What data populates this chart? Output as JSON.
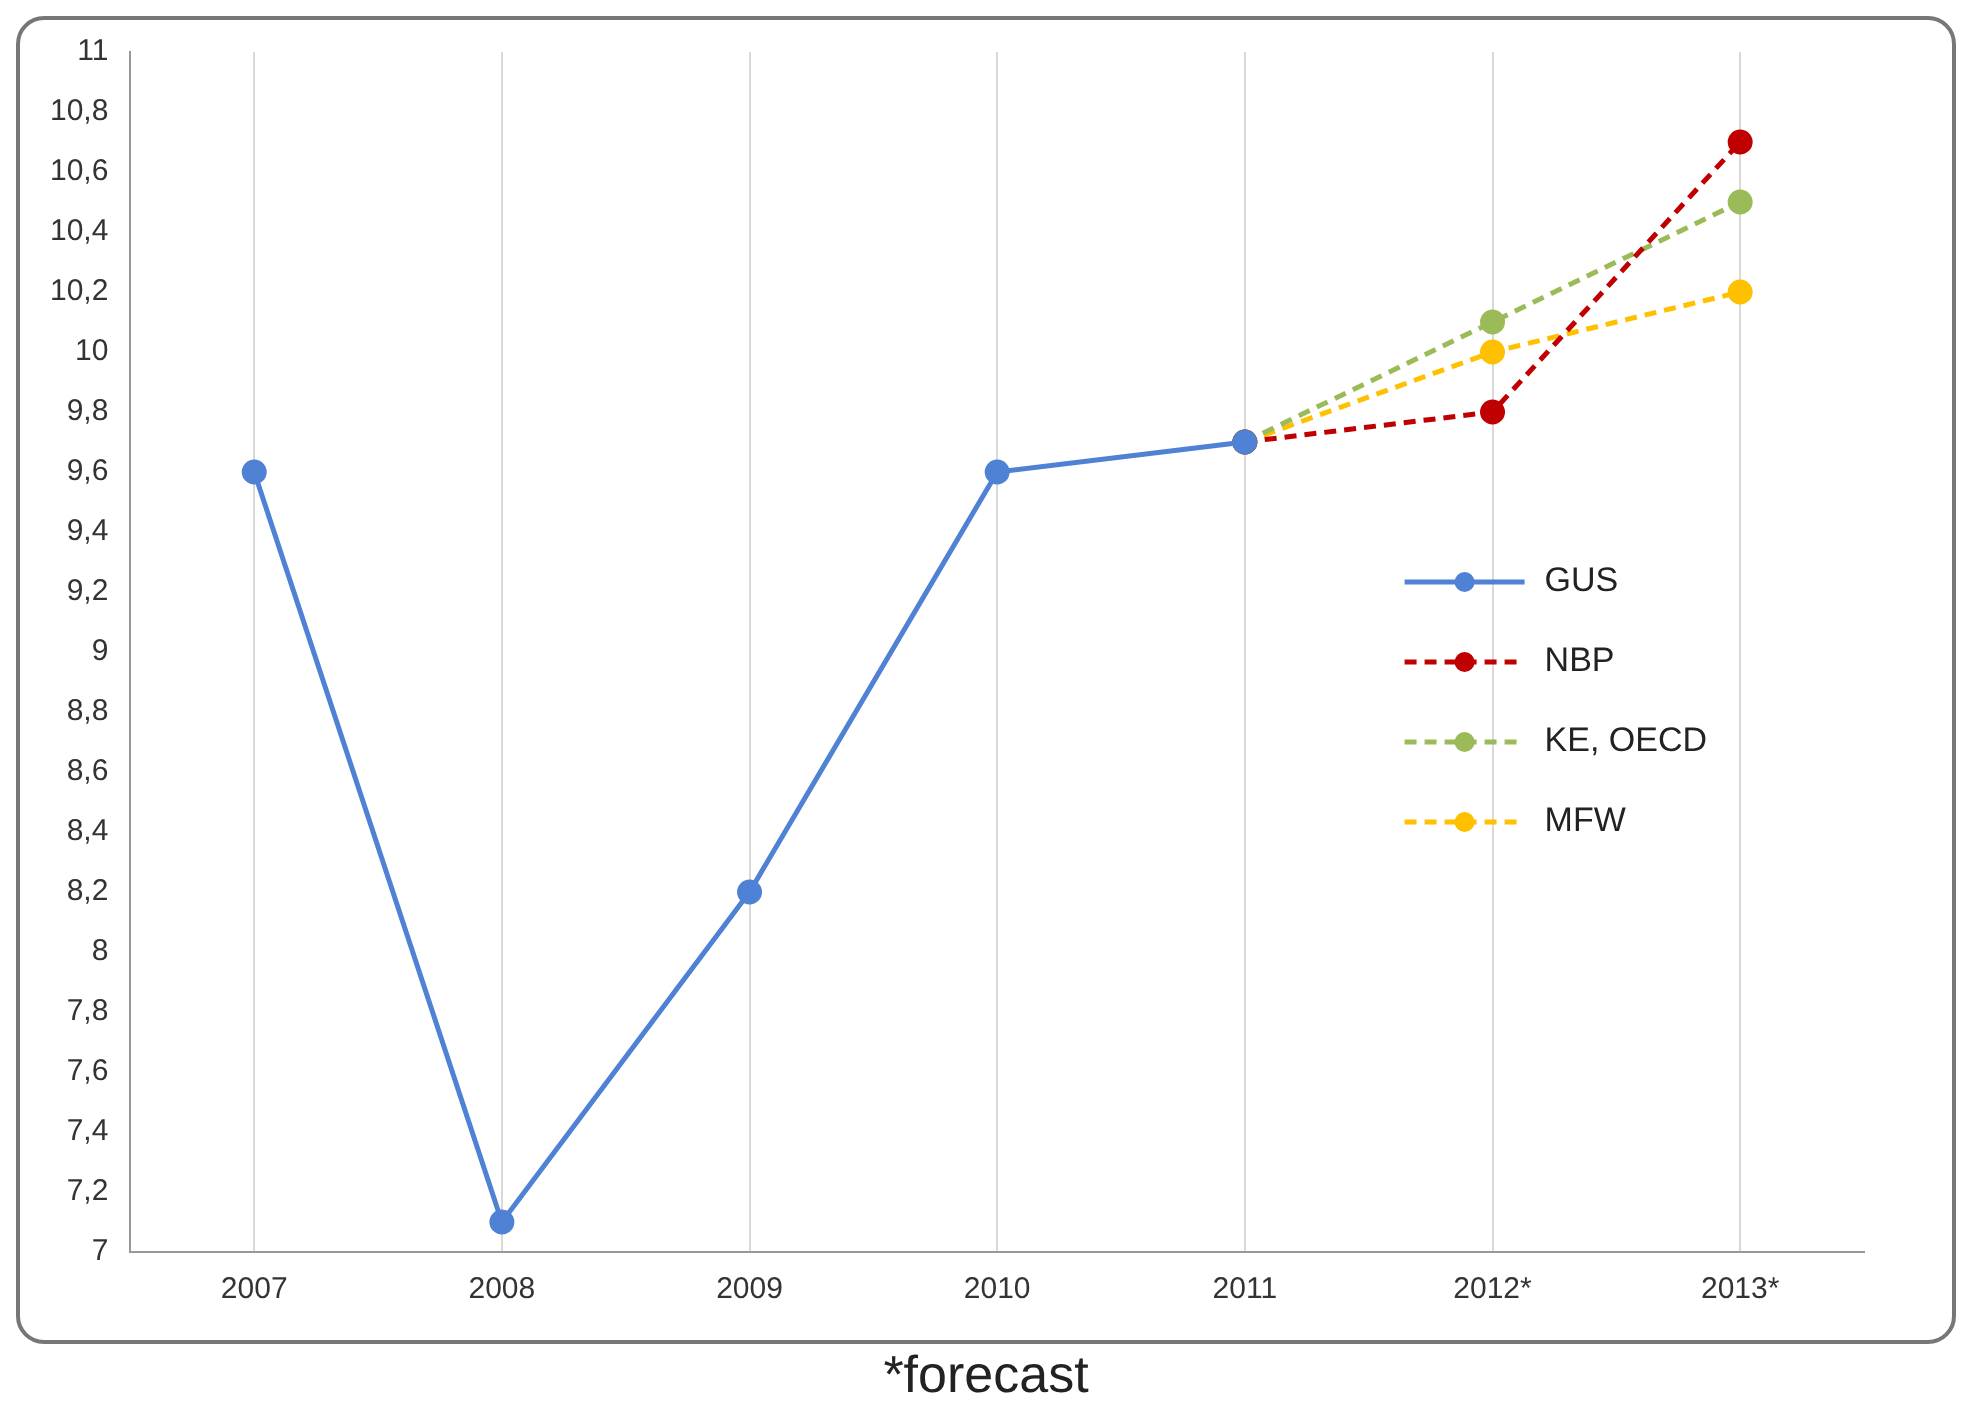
{
  "chart_data": {
    "type": "line",
    "categories": [
      "2007",
      "2008",
      "2009",
      "2010",
      "2011",
      "2012*",
      "2013*"
    ],
    "series": [
      {
        "name": "GUS",
        "color": "#4f81d4",
        "line_style": "solid",
        "values": [
          9.6,
          7.1,
          8.2,
          9.6,
          9.7,
          null,
          null
        ]
      },
      {
        "name": "NBP",
        "color": "#c00000",
        "line_style": "dashed",
        "values": [
          null,
          null,
          null,
          null,
          9.7,
          9.8,
          10.7
        ]
      },
      {
        "name": "KE, OECD",
        "color": "#9bbb59",
        "line_style": "dashed",
        "values": [
          null,
          null,
          null,
          null,
          9.7,
          10.1,
          10.5
        ]
      },
      {
        "name": "MFW",
        "color": "#ffc000",
        "line_style": "dashed",
        "values": [
          null,
          null,
          null,
          null,
          9.7,
          10.0,
          10.2
        ]
      }
    ],
    "ylim": [
      7,
      11
    ],
    "yticks": [
      7,
      {
        "value": 7.2,
        "label": "7,2"
      },
      {
        "value": 7.4,
        "label": "7,4"
      },
      {
        "value": 7.6,
        "label": "7,6"
      },
      {
        "value": 7.8,
        "label": "7,8"
      },
      8,
      {
        "value": 8.2,
        "label": "8,2"
      },
      {
        "value": 8.4,
        "label": "8,4"
      },
      {
        "value": 8.6,
        "label": "8,6"
      },
      {
        "value": 8.8,
        "label": "8,8"
      },
      9,
      {
        "value": 9.2,
        "label": "9,2"
      },
      {
        "value": 9.4,
        "label": "9,4"
      },
      {
        "value": 9.6,
        "label": "9,6"
      },
      {
        "value": 9.8,
        "label": "9,8"
      },
      10,
      {
        "value": 10.2,
        "label": "10,2"
      },
      {
        "value": 10.4,
        "label": "10,4"
      },
      {
        "value": 10.6,
        "label": "10,6"
      },
      {
        "value": 10.8,
        "label": "10,8"
      },
      11
    ],
    "grid": "x",
    "legend": "right",
    "marker": "circle",
    "annotations": [
      "*forecast"
    ]
  }
}
